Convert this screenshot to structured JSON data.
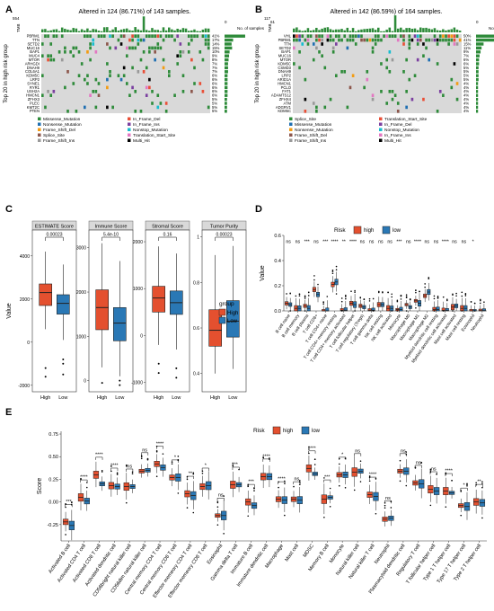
{
  "panel_labels": [
    "A",
    "B",
    "C",
    "D",
    "E"
  ],
  "chart_data": [
    {
      "panel": "A",
      "type": "heatmap",
      "title": "Altered in 124 (86.71%) of 143 samples.",
      "top_axis_max": "554",
      "top_axis_label": "TMB",
      "side_axis": [
        "0",
        "61"
      ],
      "side_label": "No. of samples",
      "ylabel": "Top 20 in high risk group",
      "genes": [
        "PBRM1",
        "TTN",
        "SETD2",
        "MUC16",
        "BAP1",
        "MUC4",
        "MTOR",
        "ARHGDI",
        "DNAH9",
        "COL6A1",
        "KDM5C",
        "LRP2",
        "SYNE1",
        "RYR1",
        "USH2A",
        "HMCN1",
        "ZFHX3",
        "PLEC",
        "KMT2C",
        "PTEN"
      ],
      "percents": [
        "41%",
        "17%",
        "14%",
        "15%",
        "10%",
        "9%",
        "8%",
        "7%",
        "7%",
        "7%",
        "6%",
        "6%",
        "6%",
        "6%",
        "6%",
        "6%",
        "5%",
        "5%",
        "5%",
        "5%"
      ],
      "legend": [
        "Missense_Mutation",
        "In_Frame_Del",
        "Nonsense_Mutation",
        "In_Frame_Ins",
        "Frame_Shift_Del",
        "Nonstop_Mutation",
        "Splice_Site",
        "Translation_Start_Site",
        "Frame_Shift_Ins",
        "Multi_Hit"
      ]
    },
    {
      "panel": "B",
      "type": "heatmap",
      "title": "Altered in 142 (86.59%) of 164 samples.",
      "top_axis_max": "117",
      "top_axis_label": "TMB",
      "side_axis": [
        "0",
        "83"
      ],
      "side_label": "No. of samples",
      "ylabel": "Top 20 in high risk group",
      "genes": [
        "VHL",
        "PBRM1",
        "TTN",
        "SETD2",
        "BAP1",
        "MUC16",
        "MTOR",
        "KDM5C",
        "CSMD3",
        "DNAH9",
        "LRP2",
        "ARID1A",
        "HMCN1",
        "PCLO",
        "FAT1",
        "ADAMTS12",
        "ZFHX4",
        "ATM",
        "ADGRV1",
        "KDM5C"
      ],
      "percents": [
        "50%",
        "41%",
        "15%",
        "11%",
        "9%",
        "7%",
        "6%",
        "6%",
        "5%",
        "5%",
        "5%",
        "5%",
        "4%",
        "4%",
        "4%",
        "4%",
        "4%",
        "4%",
        "4%",
        "4%"
      ],
      "legend": [
        "Splice_Site",
        "Translation_Start_Site",
        "Missense_Mutation",
        "In_Frame_Del",
        "Nonsense_Mutation",
        "Nonstop_Mutation",
        "Frame_Shift_Del",
        "In_Frame_Ins",
        "Frame_Shift_Ins",
        "Multi_Hit"
      ]
    },
    {
      "panel": "C",
      "type": "box",
      "ylabel": "Value",
      "xcats": [
        "High",
        "Low"
      ],
      "legend_title": "group",
      "legend": [
        "High",
        "Low"
      ],
      "colors": {
        "High": "#e4502f",
        "Low": "#2a78b5"
      },
      "facets": [
        {
          "title": "ESTIMATE Score",
          "p": "0.00023",
          "ylim": [
            -2300,
            5200
          ],
          "ticks": [
            -2000,
            0,
            2000,
            4000
          ],
          "high": {
            "q1": 1700,
            "med": 2300,
            "q3": 2700,
            "wl": 600,
            "wh": 4200,
            "out": [
              -1200,
              -1600
            ]
          },
          "low": {
            "q1": 1300,
            "med": 1800,
            "q3": 2200,
            "wl": 100,
            "wh": 3600,
            "out": [
              -800,
              -1000,
              -1500
            ]
          }
        },
        {
          "title": "Immune Score",
          "p": "5.4e-10",
          "ylim": [
            -250,
            3400
          ],
          "ticks": [
            0,
            1000,
            2000,
            3000
          ],
          "high": {
            "q1": 1150,
            "med": 1650,
            "q3": 2050,
            "wl": 300,
            "wh": 3100,
            "out": [
              -50
            ]
          },
          "low": {
            "q1": 900,
            "med": 1300,
            "q3": 1650,
            "wl": 100,
            "wh": 2700,
            "out": [
              -100,
              0
            ]
          }
        },
        {
          "title": "Stromal Score",
          "p": "0.16",
          "ylim": [
            -1200,
            2250
          ],
          "ticks": [
            -1000,
            0,
            1000,
            2000
          ],
          "high": {
            "q1": 500,
            "med": 800,
            "q3": 1050,
            "wl": -200,
            "wh": 1900,
            "out": [
              -600,
              -800
            ]
          },
          "low": {
            "q1": 450,
            "med": 700,
            "q3": 950,
            "wl": -300,
            "wh": 1750,
            "out": [
              -700,
              -900
            ]
          }
        },
        {
          "title": "Tumor Purity",
          "p": "0.00023",
          "ylim": [
            0.32,
            1.03
          ],
          "ticks": [
            0.4,
            0.6,
            0.8,
            1.0
          ],
          "high": {
            "q1": 0.52,
            "med": 0.59,
            "q3": 0.68,
            "wl": 0.4,
            "wh": 0.92,
            "out": []
          },
          "low": {
            "q1": 0.56,
            "med": 0.63,
            "q3": 0.72,
            "wl": 0.42,
            "wh": 0.96,
            "out": []
          }
        }
      ]
    },
    {
      "panel": "D",
      "type": "box",
      "legend_title": "Risk",
      "legend": [
        "high",
        "low"
      ],
      "colors": {
        "high": "#e4502f",
        "low": "#2a78b5"
      },
      "ylabel": "Value",
      "ylim": [
        0,
        0.6
      ],
      "yticks": [
        0.0,
        0.2,
        0.4,
        0.6
      ],
      "categories": [
        "B cell naive",
        "B cell memory",
        "B cell plasma",
        "T cell CD8+",
        "T cell CD4+ naive",
        "T cell CD4+ memory resting",
        "T cell CD4+ memory activated",
        "T cell follicular helper",
        "T cell regulatory (Tregs)",
        "T cell gamma delta",
        "NK cell resting",
        "NK cell activated",
        "Monocyte",
        "Macrophage M0",
        "Macrophage M1",
        "Macrophage M2",
        "Myeloid dendritic cell resting",
        "Myeloid dendritic cell activated",
        "Mast cell activated",
        "Mast cell resting",
        "Eosinophil",
        "Neutrophil"
      ],
      "sig": [
        "ns",
        "ns",
        "***",
        "ns",
        "***",
        "****",
        "**",
        "****",
        "ns",
        "ns",
        "ns",
        "ns",
        "***",
        "ns",
        "****",
        "ns",
        "ns",
        "****",
        "ns",
        "ns",
        "*",
        ""
      ],
      "high_median": [
        0.06,
        0.02,
        0.04,
        0.17,
        0.0,
        0.21,
        0.005,
        0.06,
        0.04,
        0.005,
        0.05,
        0.02,
        0.01,
        0.05,
        0.08,
        0.12,
        0.01,
        0.003,
        0.03,
        0.02,
        0.0,
        0.002
      ],
      "low_median": [
        0.05,
        0.02,
        0.02,
        0.13,
        0.0,
        0.23,
        0.005,
        0.05,
        0.03,
        0.005,
        0.05,
        0.02,
        0.01,
        0.03,
        0.06,
        0.15,
        0.01,
        0.003,
        0.04,
        0.02,
        0.0,
        0.002
      ]
    },
    {
      "panel": "E",
      "type": "box",
      "legend_title": "Risk",
      "legend": [
        "high",
        "low"
      ],
      "colors": {
        "high": "#e4502f",
        "low": "#2a78b5"
      },
      "ylabel": "Score",
      "ylim": [
        -0.43,
        0.78
      ],
      "yticks": [
        -0.25,
        0.0,
        0.25,
        0.5,
        0.75
      ],
      "categories": [
        "Activated B cell",
        "Activated CD4 T cell",
        "Activated CD8 T cell",
        "Activated dendritic cell",
        "CD56bright natural killer cell",
        "CD56dim natural killer cell",
        "Central memory CD4 T cell",
        "Central memory CD8 T cell",
        "Effector memeory CD4 T cell",
        "Effector memeory CD8 T cell",
        "Eosinophil",
        "Gamma delta T cell",
        "Immature B cell",
        "Immature dendritic cell",
        "Macrophage",
        "Mast cell",
        "MDSC",
        "Memory B cell",
        "Monocyte",
        "Natural killer cell",
        "Natural killer T cell",
        "Neutrophil",
        "Plasmacytoid dendritic cell",
        "Regulatory T cell",
        "T follicular helper cell",
        "Type 1 T helper cell",
        "Type 17 T helper cell",
        "Type 2 T helper cell"
      ],
      "sig": [
        "***",
        "****",
        "****",
        "****",
        "ns",
        "ns",
        "****",
        "*",
        "**",
        "*",
        "ns",
        "**",
        "***",
        "****",
        "****",
        "ns",
        "****",
        "***",
        "*",
        "ns",
        "****",
        "ns",
        "ns",
        "ns",
        "ns",
        "****",
        "*",
        "**"
      ],
      "high_median": [
        -0.22,
        0.05,
        0.3,
        0.18,
        0.17,
        0.34,
        0.42,
        0.27,
        0.09,
        0.17,
        -0.15,
        0.19,
        0.0,
        0.28,
        0.03,
        0.03,
        0.37,
        0.03,
        0.3,
        0.33,
        0.08,
        -0.19,
        0.34,
        0.21,
        0.14,
        0.12,
        -0.04,
        0.0
      ],
      "low_median": [
        -0.26,
        0.01,
        0.2,
        0.17,
        0.17,
        0.35,
        0.38,
        0.27,
        0.07,
        0.18,
        -0.15,
        0.19,
        -0.04,
        0.28,
        0.02,
        0.02,
        0.31,
        0.05,
        0.3,
        0.34,
        0.06,
        -0.18,
        0.34,
        0.2,
        0.12,
        0.1,
        -0.05,
        -0.01
      ]
    }
  ]
}
